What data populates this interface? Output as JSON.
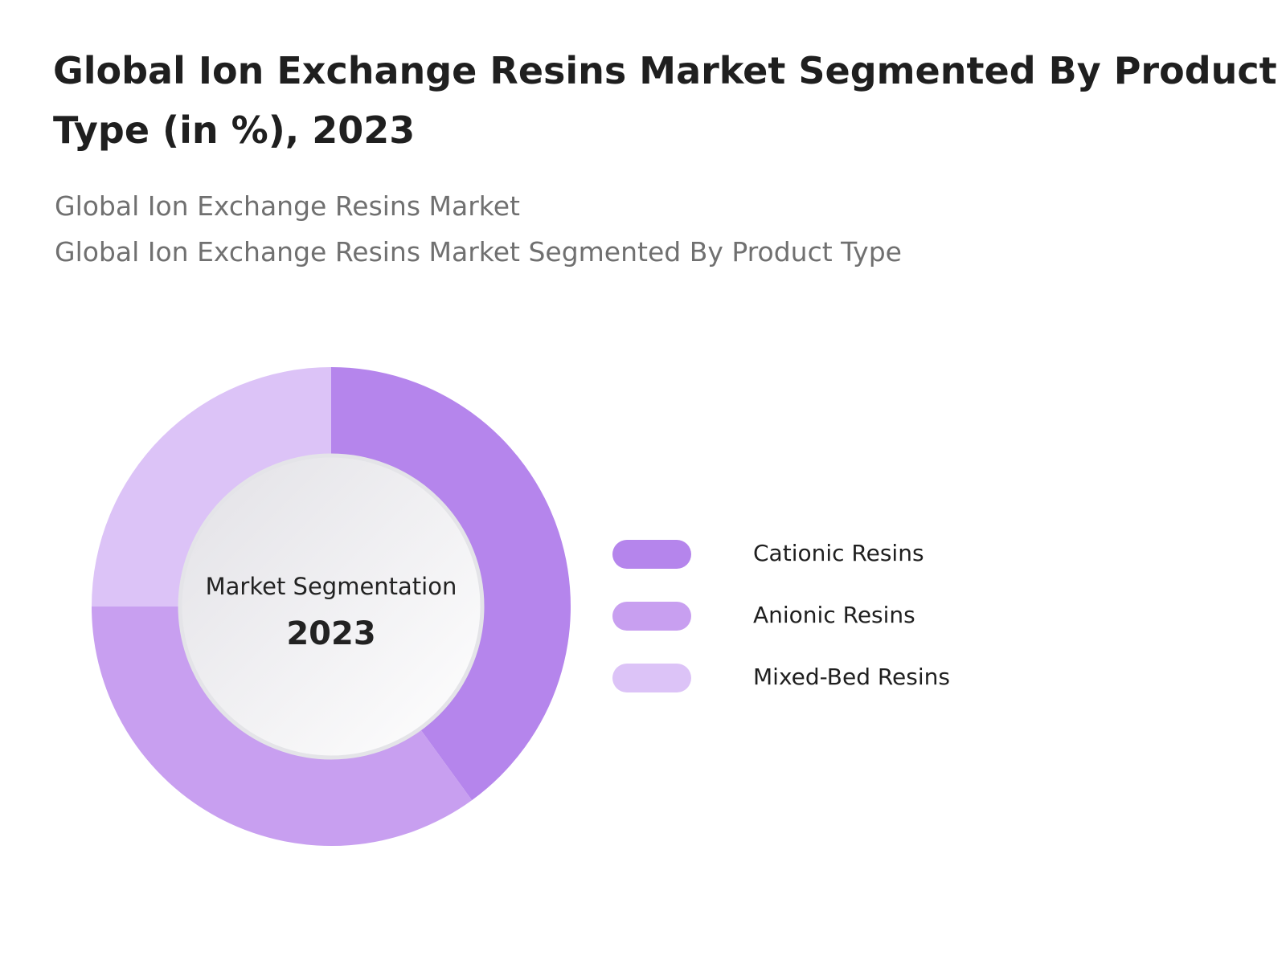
{
  "chart_data": {
    "type": "donut",
    "title": [
      "Global Ion Exchange Resins Market Segmented By Product",
      "Type (in %), 2023"
    ],
    "subtitle": [
      "Global Ion Exchange Resins Market",
      "Global Ion Exchange Resins Market Segmented By Product Type"
    ],
    "center_label": "Market Segmentation",
    "center_value": "2023",
    "categories": [
      "Cationic Resins",
      "Anionic Resins",
      "Mixed-Bed Resins"
    ],
    "values": [
      40,
      35,
      25
    ],
    "colors": [
      "#b585ec",
      "#c89ff0",
      "#dcc3f7"
    ]
  }
}
